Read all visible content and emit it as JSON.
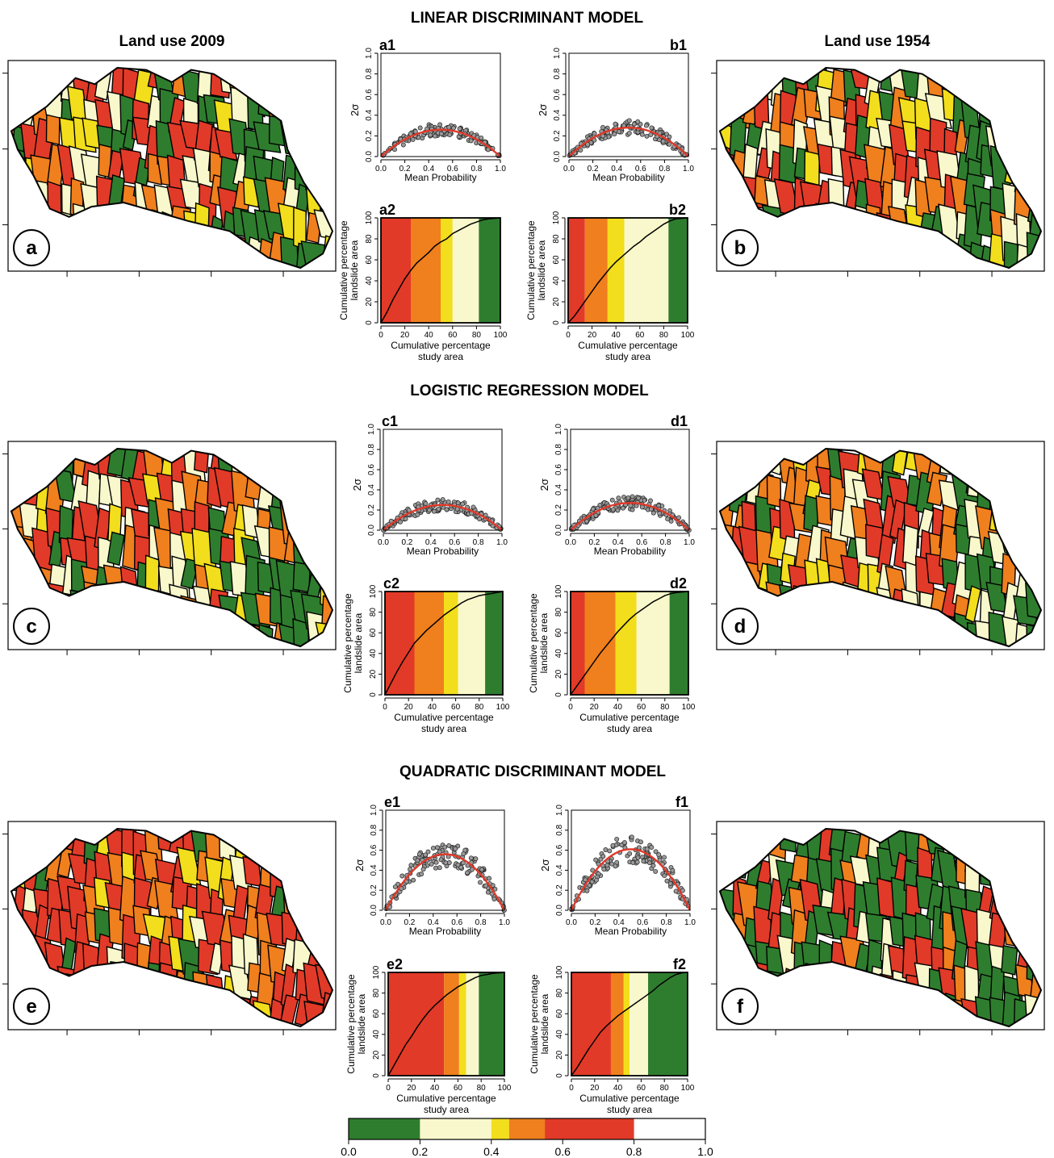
{
  "colors": {
    "c0": "#2e7d2e",
    "c1": "#f8f8cc",
    "c2": "#f2de1c",
    "c3": "#f07f1e",
    "c4": "#e23a28",
    "fit": "#e0392a",
    "point": "#9a9a9a"
  },
  "headings": {
    "land_use_2009": "Land use 2009",
    "land_use_1954": "Land use 1954",
    "models": [
      "LINEAR DISCRIMINANT MODEL",
      "LOGISTIC REGRESSION MODEL",
      "QUADRATIC DISCRIMINANT MODEL"
    ]
  },
  "maps": [
    {
      "label": "a",
      "seed": 3
    },
    {
      "label": "b",
      "seed": 7
    },
    {
      "label": "c",
      "seed": 11
    },
    {
      "label": "d",
      "seed": 17
    },
    {
      "label": "e",
      "seed": 23
    },
    {
      "label": "f",
      "seed": 29
    }
  ],
  "chart_data": [
    {
      "id": "a1",
      "type": "scatter",
      "title": "a1",
      "xlabel": "Mean Probability",
      "ylabel": "2σ",
      "xlim": [
        0,
        1
      ],
      "ylim": [
        0,
        1
      ],
      "xticks": [
        "0.0",
        "0.2",
        "0.4",
        "0.6",
        "0.8",
        "1.0"
      ],
      "yticks": [
        "0.0",
        "0.2",
        "0.4",
        "0.6",
        "0.8",
        "1.0"
      ],
      "series": [
        {
          "name": "",
          "values": "scatter points around quadratic fit",
          "peak": 0.26,
          "n": 150,
          "seed": 41,
          "spread": 0.06
        }
      ],
      "fit": "2σ ≈ 4·0.26·p(1−p)"
    },
    {
      "id": "b1",
      "type": "scatter",
      "title": "b1",
      "xlabel": "Mean Probability",
      "ylabel": "2σ",
      "xlim": [
        0,
        1
      ],
      "ylim": [
        0,
        1
      ],
      "xticks": [
        "0.0",
        "0.2",
        "0.4",
        "0.6",
        "0.8",
        "1.0"
      ],
      "yticks": [
        "0.0",
        "0.2",
        "0.4",
        "0.6",
        "0.8",
        "1.0"
      ],
      "series": [
        {
          "name": "",
          "peak": 0.28,
          "n": 150,
          "seed": 42,
          "spread": 0.07
        }
      ],
      "fit": "2σ ≈ 4·0.28·p(1−p)"
    },
    {
      "id": "c1",
      "type": "scatter",
      "title": "c1",
      "xlabel": "Mean Probability",
      "ylabel": "2σ",
      "xlim": [
        0,
        1
      ],
      "ylim": [
        0,
        1
      ],
      "xticks": [
        "0.0",
        "0.2",
        "0.4",
        "0.6",
        "0.8",
        "1.0"
      ],
      "yticks": [
        "0.0",
        "0.2",
        "0.4",
        "0.6",
        "0.8",
        "1.0"
      ],
      "series": [
        {
          "name": "",
          "peak": 0.25,
          "n": 150,
          "seed": 43,
          "spread": 0.06
        }
      ],
      "fit": "2σ ≈ 4·0.25·p(1−p)"
    },
    {
      "id": "d1",
      "type": "scatter",
      "title": "d1",
      "xlabel": "Mean Probability",
      "ylabel": "2σ",
      "xlim": [
        0,
        1
      ],
      "ylim": [
        0,
        1
      ],
      "xticks": [
        "0.0",
        "0.2",
        "0.4",
        "0.6",
        "0.8",
        "1.0"
      ],
      "yticks": [
        "0.0",
        "0.2",
        "0.4",
        "0.6",
        "0.8",
        "1.0"
      ],
      "series": [
        {
          "name": "",
          "peak": 0.27,
          "n": 150,
          "seed": 44,
          "spread": 0.07
        }
      ],
      "fit": "2σ ≈ 4·0.27·p(1−p)"
    },
    {
      "id": "e1",
      "type": "scatter",
      "title": "e1",
      "xlabel": "Mean Probability",
      "ylabel": "2σ",
      "xlim": [
        0,
        1
      ],
      "ylim": [
        0,
        1
      ],
      "xticks": [
        "0.0",
        "0.2",
        "0.4",
        "0.6",
        "0.8",
        "1.0"
      ],
      "yticks": [
        "0.0",
        "0.2",
        "0.4",
        "0.6",
        "0.8",
        "1.0"
      ],
      "series": [
        {
          "name": "",
          "peak": 0.56,
          "n": 150,
          "seed": 45,
          "spread": 0.13
        }
      ],
      "fit": "2σ ≈ 4·0.56·p(1−p)"
    },
    {
      "id": "f1",
      "type": "scatter",
      "title": "f1",
      "xlabel": "Mean Probability",
      "ylabel": "2σ",
      "xlim": [
        0,
        1
      ],
      "ylim": [
        0,
        1
      ],
      "xticks": [
        "0.0",
        "0.2",
        "0.4",
        "0.6",
        "0.8",
        "1.0"
      ],
      "yticks": [
        "0.0",
        "0.2",
        "0.4",
        "0.6",
        "0.8",
        "1.0"
      ],
      "series": [
        {
          "name": "",
          "peak": 0.61,
          "n": 150,
          "seed": 46,
          "spread": 0.14
        }
      ],
      "fit": "2σ ≈ 4·0.61·p(1−p)"
    },
    {
      "id": "a2",
      "type": "line",
      "title": "a2",
      "xlabel": [
        "Cumulative percentage",
        "study area"
      ],
      "ylabel": [
        "Cumulative percentage",
        "landslide area"
      ],
      "xlim": [
        0,
        100
      ],
      "ylim": [
        0,
        100
      ],
      "xticks": [
        "0",
        "20",
        "40",
        "60",
        "80",
        "100"
      ],
      "yticks": [
        "0",
        "20",
        "40",
        "60",
        "80",
        "100"
      ],
      "bands": [
        25,
        50,
        60,
        82,
        100
      ],
      "curve": {
        "x": [
          0,
          5,
          10,
          15,
          20,
          25,
          30,
          35,
          40,
          45,
          50,
          55,
          60,
          65,
          70,
          75,
          80,
          85,
          90,
          95,
          100
        ],
        "y": [
          0,
          10,
          22,
          32,
          42,
          50,
          57,
          62,
          67,
          73,
          77,
          80,
          85,
          88,
          91,
          94,
          96,
          98,
          99,
          99.5,
          100
        ]
      }
    },
    {
      "id": "b2",
      "type": "line",
      "title": "b2",
      "xlabel": [
        "Cumulative percentage",
        "study area"
      ],
      "ylabel": [
        "Cumulative percentage",
        "landslide area"
      ],
      "xlim": [
        0,
        100
      ],
      "ylim": [
        0,
        100
      ],
      "xticks": [
        "0",
        "20",
        "40",
        "60",
        "80",
        "100"
      ],
      "yticks": [
        "0",
        "20",
        "40",
        "60",
        "80",
        "100"
      ],
      "bands": [
        14,
        33,
        47,
        84,
        100
      ],
      "curve": {
        "x": [
          0,
          5,
          10,
          15,
          20,
          25,
          30,
          35,
          40,
          45,
          50,
          55,
          60,
          65,
          70,
          75,
          80,
          85,
          90,
          95,
          100
        ],
        "y": [
          0,
          6,
          14,
          22,
          30,
          38,
          45,
          52,
          58,
          63,
          68,
          73,
          77,
          82,
          86,
          90,
          94,
          97,
          99,
          99.5,
          100
        ]
      }
    },
    {
      "id": "c2",
      "type": "line",
      "title": "c2",
      "xlabel": [
        "Cumulative percentage",
        "study area"
      ],
      "ylabel": [
        "Cumulative percentage",
        "landslide area"
      ],
      "xlim": [
        0,
        100
      ],
      "ylim": [
        0,
        100
      ],
      "xticks": [
        "0",
        "20",
        "40",
        "60",
        "80",
        "100"
      ],
      "yticks": [
        "0",
        "20",
        "40",
        "60",
        "80",
        "100"
      ],
      "bands": [
        25,
        50,
        62,
        85,
        100
      ],
      "curve": {
        "x": [
          0,
          5,
          10,
          15,
          20,
          25,
          30,
          35,
          40,
          45,
          50,
          55,
          60,
          65,
          70,
          75,
          80,
          85,
          90,
          95,
          100
        ],
        "y": [
          0,
          11,
          22,
          32,
          41,
          50,
          56,
          62,
          67,
          72,
          77,
          81,
          85,
          89,
          92,
          94,
          96,
          97,
          98,
          99,
          100
        ]
      }
    },
    {
      "id": "d2",
      "type": "line",
      "title": "d2",
      "xlabel": [
        "Cumulative percentage",
        "study area"
      ],
      "ylabel": [
        "Cumulative percentage",
        "landslide area"
      ],
      "xlim": [
        0,
        100
      ],
      "ylim": [
        0,
        100
      ],
      "xticks": [
        "0",
        "20",
        "40",
        "60",
        "80",
        "100"
      ],
      "yticks": [
        "0",
        "20",
        "40",
        "60",
        "80",
        "100"
      ],
      "bands": [
        12,
        38,
        56,
        84,
        100
      ],
      "curve": {
        "x": [
          0,
          5,
          10,
          15,
          20,
          25,
          30,
          35,
          40,
          45,
          50,
          55,
          60,
          65,
          70,
          75,
          80,
          85,
          90,
          95,
          100
        ],
        "y": [
          0,
          8,
          16,
          24,
          32,
          40,
          47,
          54,
          61,
          67,
          73,
          78,
          82,
          86,
          90,
          93,
          96,
          98,
          99,
          99.5,
          100
        ]
      }
    },
    {
      "id": "e2",
      "type": "line",
      "title": "e2",
      "xlabel": [
        "Cumulative percentage",
        "study area"
      ],
      "ylabel": [
        "Cumulative percentage",
        "landslide area"
      ],
      "xlim": [
        0,
        100
      ],
      "ylim": [
        0,
        100
      ],
      "xticks": [
        "0",
        "20",
        "40",
        "60",
        "80",
        "100"
      ],
      "yticks": [
        "0",
        "20",
        "40",
        "60",
        "80",
        "100"
      ],
      "bands": [
        48,
        61,
        67,
        78,
        100
      ],
      "curve": {
        "x": [
          0,
          5,
          10,
          15,
          20,
          25,
          30,
          35,
          40,
          45,
          50,
          55,
          60,
          65,
          70,
          75,
          80,
          85,
          90,
          95,
          100
        ],
        "y": [
          0,
          10,
          20,
          30,
          38,
          47,
          55,
          62,
          68,
          73,
          78,
          82,
          86,
          89,
          92,
          95,
          97,
          98,
          99,
          99.5,
          100
        ]
      }
    },
    {
      "id": "f2",
      "type": "line",
      "title": "f2",
      "xlabel": [
        "Cumulative percentage",
        "study area"
      ],
      "ylabel": [
        "Cumulative percentage",
        "landslide area"
      ],
      "xlim": [
        0,
        100
      ],
      "ylim": [
        0,
        100
      ],
      "xticks": [
        "0",
        "20",
        "40",
        "60",
        "80",
        "100"
      ],
      "yticks": [
        "0",
        "20",
        "40",
        "60",
        "80",
        "100"
      ],
      "bands": [
        34,
        45,
        50,
        66,
        100
      ],
      "curve": {
        "x": [
          0,
          5,
          10,
          15,
          20,
          25,
          30,
          35,
          40,
          45,
          50,
          55,
          60,
          65,
          70,
          75,
          80,
          85,
          90,
          95,
          100
        ],
        "y": [
          0,
          8,
          17,
          26,
          34,
          42,
          48,
          53,
          58,
          62,
          66,
          70,
          74,
          78,
          82,
          87,
          91,
          95,
          98,
          99.5,
          100
        ]
      }
    }
  ],
  "legend": {
    "breaks": [
      0.0,
      0.2,
      0.4,
      0.45,
      0.55,
      0.8,
      1.0
    ],
    "band_colors": [
      "c0",
      "c1",
      "c2",
      "c3",
      "c4"
    ],
    "tick_labels": [
      "0.0",
      "0.2",
      "0.4",
      "0.6",
      "0.8",
      "1.0"
    ]
  }
}
